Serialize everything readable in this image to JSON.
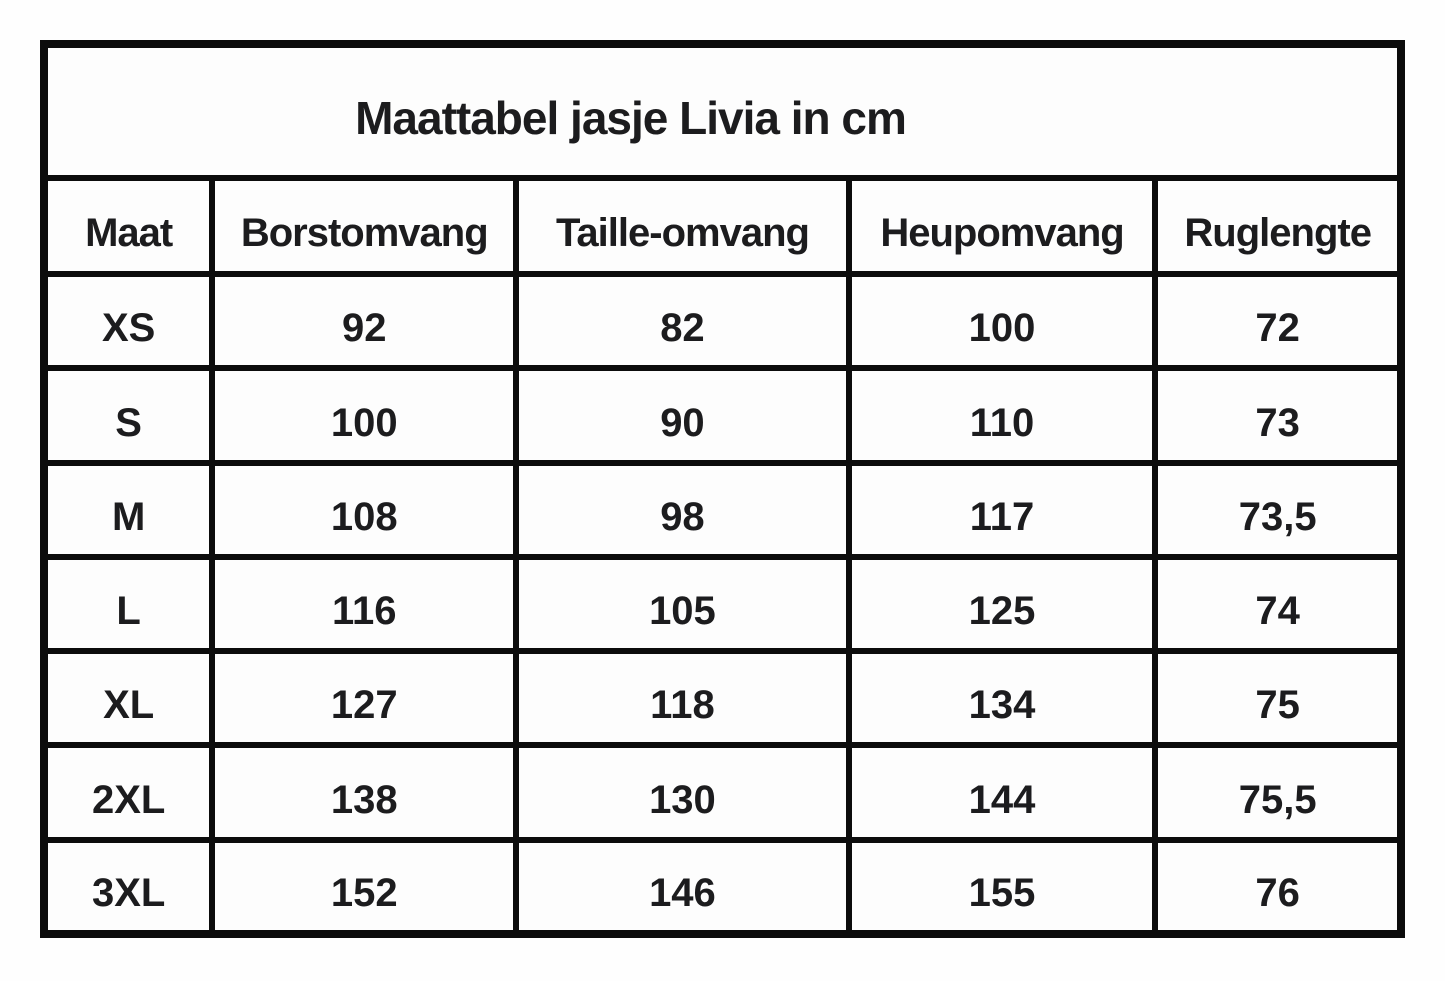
{
  "table": {
    "title": "Maattabel jasje Livia in cm",
    "unit": "cm",
    "columns": [
      "Maat",
      "Borstomvang",
      "Taille-omvang",
      "Heupomvang",
      "Ruglengte"
    ],
    "rows": [
      [
        "XS",
        "92",
        "82",
        "100",
        "72"
      ],
      [
        "S",
        "100",
        "90",
        "110",
        "73"
      ],
      [
        "M",
        "108",
        "98",
        "117",
        "73,5"
      ],
      [
        "L",
        "116",
        "105",
        "125",
        "74"
      ],
      [
        "XL",
        "127",
        "118",
        "134",
        "75"
      ],
      [
        "2XL",
        "138",
        "130",
        "144",
        "75,5"
      ],
      [
        "3XL",
        "152",
        "146",
        "155",
        "76"
      ]
    ]
  },
  "colors": {
    "border": "#0c0c0c",
    "text": "#1c1c1e",
    "background": "#fefefe",
    "cell_background": "#fdfdfd"
  }
}
